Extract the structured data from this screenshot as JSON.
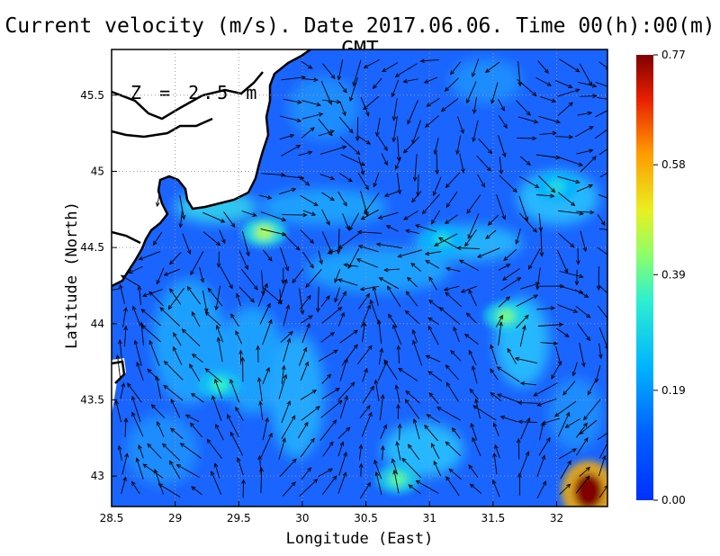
{
  "title": "Current velocity (m/s). Date 2017.06.06. Time 00(h):00(m) GMT",
  "depth_label": "Z = 2.5 m",
  "xlabel": "Longitude (East)",
  "ylabel": "Latitude (North)",
  "colors": {
    "land": "#ffffff",
    "coast": "#000000",
    "grid": "#999999",
    "arrow": "#000000"
  },
  "chart_data": {
    "type": "heatmap",
    "title": "Current velocity (m/s). Date 2017.06.06. Time 00(h):00(m) GMT",
    "xlabel": "Longitude (East)",
    "ylabel": "Latitude (North)",
    "xlim": [
      28.5,
      32.4
    ],
    "ylim": [
      42.8,
      45.8
    ],
    "x_ticks": [
      28.5,
      29,
      29.5,
      30,
      30.5,
      31,
      31.5,
      32
    ],
    "x_tick_labels": [
      "28.5",
      "29",
      "29.5",
      "30",
      "30.5",
      "31",
      "31.5",
      "32"
    ],
    "y_ticks": [
      43,
      43.5,
      44,
      44.5,
      45,
      45.5
    ],
    "y_tick_labels": [
      "43",
      "43.5",
      "44",
      "44.5",
      "45",
      "45.5"
    ],
    "grid": true,
    "colorbar": {
      "min": 0.0,
      "max": 0.77,
      "tick_labels": [
        "0.77",
        "0.58",
        "0.39",
        "0.19",
        "0.00"
      ],
      "tick_values": [
        0.77,
        0.58,
        0.39,
        0.19,
        0.0
      ],
      "colormap": "jet"
    },
    "annotation": "Z = 2.5 m",
    "hotspots": [
      {
        "lon": 32.25,
        "lat": 42.9,
        "speed": 0.77
      },
      {
        "lon": 29.7,
        "lat": 44.6,
        "speed": 0.45
      },
      {
        "lon": 31.6,
        "lat": 44.05,
        "speed": 0.4
      },
      {
        "lon": 30.75,
        "lat": 42.98,
        "speed": 0.38
      },
      {
        "lon": 29.35,
        "lat": 43.6,
        "speed": 0.35
      },
      {
        "lon": 32.0,
        "lat": 44.9,
        "speed": 0.3
      },
      {
        "lon": 31.1,
        "lat": 44.55,
        "speed": 0.3
      }
    ]
  }
}
